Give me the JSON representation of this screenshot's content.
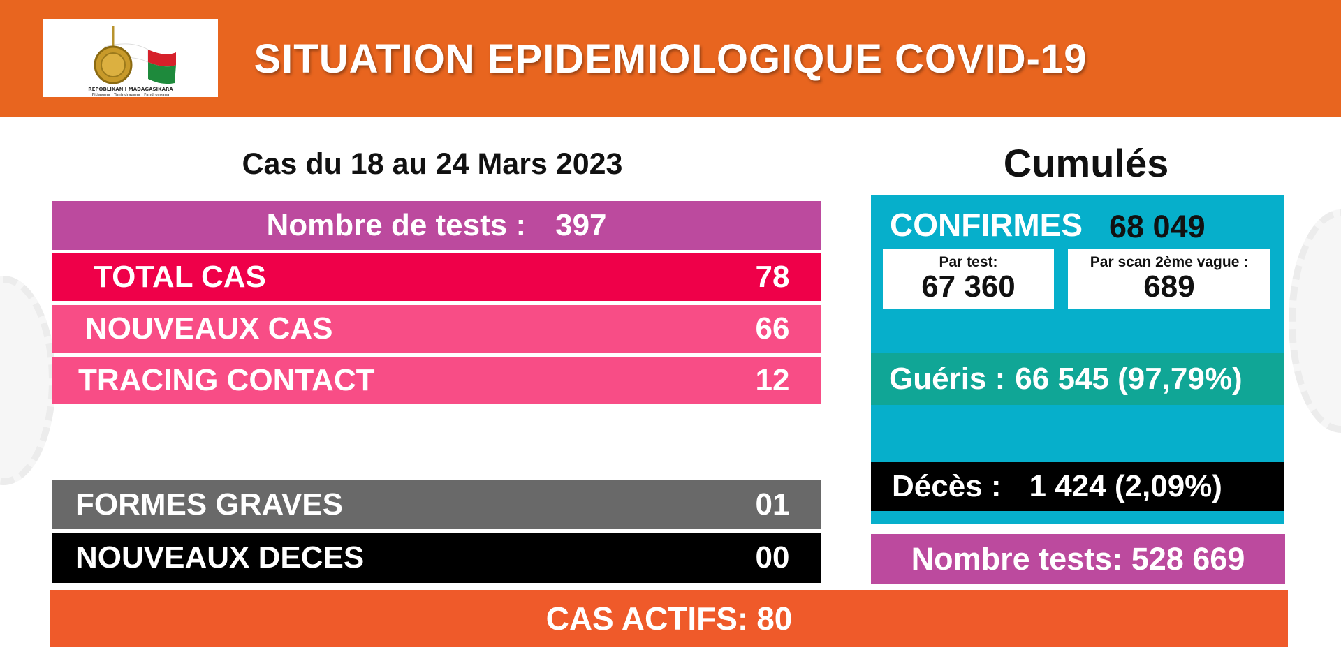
{
  "header": {
    "title": "SITUATION EPIDEMIOLOGIQUE COVID-19",
    "logo_text": "REPOBLIKAN'I MADAGASIKARA",
    "logo_motto": "Fitiavana · Tanindrazana · Fandrosoana"
  },
  "weekly": {
    "period": "Cas du 18 au 24 Mars 2023",
    "tests_label": "Nombre de tests :",
    "tests_value": "397",
    "rows": [
      {
        "label": "TOTAL CAS",
        "value": "78"
      },
      {
        "label": "NOUVEAUX CAS",
        "value": "66"
      },
      {
        "label": "TRACING CONTACT",
        "value": "12"
      },
      {
        "label": "FORMES GRAVES",
        "value": "01"
      },
      {
        "label": "NOUVEAUX DECES",
        "value": "00"
      }
    ]
  },
  "cumulative": {
    "title": "Cumulés",
    "confirmes_label": "CONFIRMES",
    "confirmes_value": "68 049",
    "par_test_label": "Par test:",
    "par_test_value": "67 360",
    "par_scan_label": "Par scan 2ème vague :",
    "par_scan_value": "689",
    "gueris_label": "Guéris :",
    "gueris_value": "66 545 (97,79%)",
    "deces_label": "Décès :",
    "deces_value": "1 424 (2,09%)",
    "tests_text": "Nombre tests: 528 669"
  },
  "active": {
    "label": "CAS ACTIFS:",
    "value": "80"
  },
  "colors": {
    "header_orange": "#e8651f",
    "tests_purple": "#bc4a9e",
    "total_red": "#ef0049",
    "pink": "#f84d86",
    "grey": "#696969",
    "black": "#000000",
    "cyan_panel": "#06afcb",
    "gueris_teal": "#10a696",
    "actifs_orange": "#ef5a2a"
  }
}
